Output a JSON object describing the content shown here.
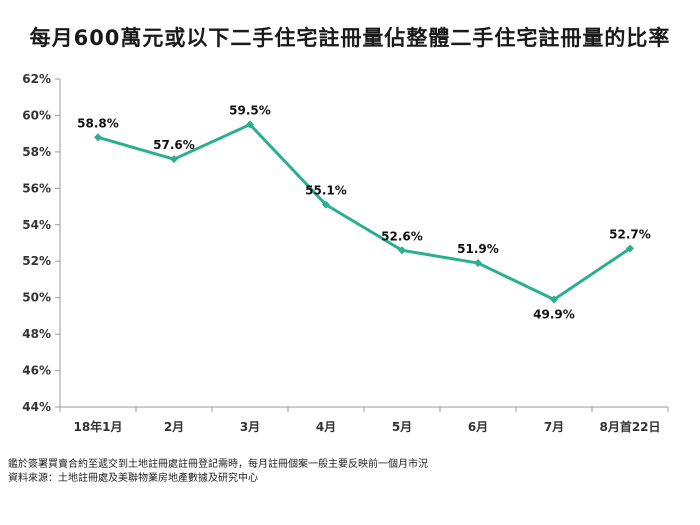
{
  "chart_data": {
    "type": "line",
    "title": "每月600萬元或以下二手住宅註冊量佔整體二手住宅註冊量的比率",
    "categories": [
      "18年1月",
      "2月",
      "3月",
      "4月",
      "5月",
      "6月",
      "7月",
      "8月首22日"
    ],
    "series": [
      {
        "values": [
          58.8,
          57.6,
          59.5,
          55.1,
          52.6,
          51.9,
          49.9,
          52.7
        ],
        "labels": [
          "58.8%",
          "57.6%",
          "59.5%",
          "55.1%",
          "52.6%",
          "51.9%",
          "49.9%",
          "52.7%"
        ],
        "color": "#2bb08f"
      }
    ],
    "yticks": [
      "44%",
      "46%",
      "48%",
      "50%",
      "52%",
      "54%",
      "56%",
      "58%",
      "60%",
      "62%"
    ],
    "ylim": [
      44,
      62
    ],
    "grid": false,
    "xlabel": "",
    "ylabel": ""
  },
  "notes": {
    "line1": "鑑於簽署買賣合約至遞交到土地註冊處註冊登記需時，每月註冊個案一般主要反映前一個月市況",
    "line2": "資料來源：土地註冊處及美聯物業房地產數據及研究中心"
  }
}
